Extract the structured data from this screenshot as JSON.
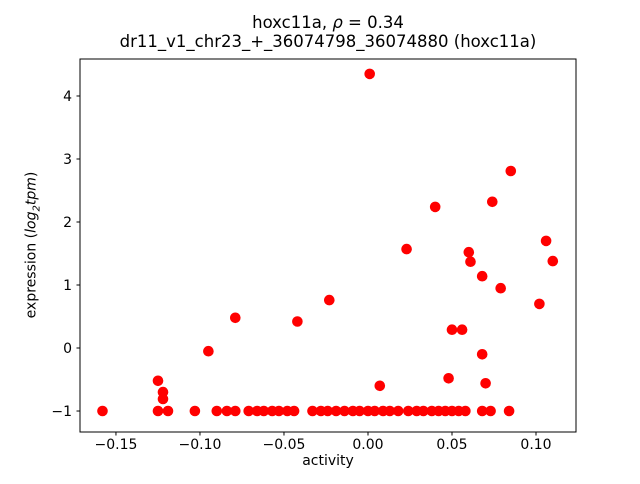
{
  "figure": {
    "title_parts": {
      "name": "hoxc11a, ",
      "rho": "ρ",
      "eq": " = 0.34"
    },
    "subtitle": "dr11_v1_chr23_+_36074798_36074880 (hoxc11a)",
    "ylabel_parts": {
      "prefix": "expression (",
      "log": "log",
      "sub": "2",
      "word": "tpm",
      "suffix": ")"
    }
  },
  "chart_data": {
    "type": "scatter",
    "title": "hoxc11a, ρ = 0.34",
    "subtitle": "dr11_v1_chr23_+_36074798_36074880 (hoxc11a)",
    "xlabel": "activity",
    "ylabel": "expression (log2tpm)",
    "legend": "none",
    "grid": false,
    "marker_color": "#ff0000",
    "marker_radius_px": 5.3,
    "xlim": [
      -0.1714,
      0.1238
    ],
    "ylim": [
      -1.333,
      4.587
    ],
    "x_ticks": [
      {
        "v": -0.15,
        "label": "−0.15"
      },
      {
        "v": -0.1,
        "label": "−0.10"
      },
      {
        "v": -0.05,
        "label": "−0.05"
      },
      {
        "v": 0.0,
        "label": "0.00"
      },
      {
        "v": 0.05,
        "label": "0.05"
      },
      {
        "v": 0.1,
        "label": "0.10"
      }
    ],
    "y_ticks": [
      {
        "v": -1,
        "label": "−1"
      },
      {
        "v": 0,
        "label": "0"
      },
      {
        "v": 1,
        "label": "1"
      },
      {
        "v": 2,
        "label": "2"
      },
      {
        "v": 3,
        "label": "3"
      },
      {
        "v": 4,
        "label": "4"
      }
    ],
    "points": [
      [
        0.001,
        4.35
      ],
      [
        0.085,
        2.81
      ],
      [
        0.074,
        2.32
      ],
      [
        0.04,
        2.24
      ],
      [
        0.106,
        1.7
      ],
      [
        0.023,
        1.57
      ],
      [
        0.06,
        1.52
      ],
      [
        0.11,
        1.38
      ],
      [
        0.061,
        1.37
      ],
      [
        0.068,
        1.14
      ],
      [
        0.079,
        0.95
      ],
      [
        -0.023,
        0.76
      ],
      [
        0.102,
        0.7
      ],
      [
        -0.079,
        0.48
      ],
      [
        -0.042,
        0.42
      ],
      [
        0.05,
        0.29
      ],
      [
        0.056,
        0.29
      ],
      [
        -0.095,
        -0.05
      ],
      [
        0.068,
        -0.1
      ],
      [
        0.048,
        -0.48
      ],
      [
        -0.125,
        -0.52
      ],
      [
        0.07,
        -0.56
      ],
      [
        0.007,
        -0.6
      ],
      [
        -0.122,
        -0.7
      ],
      [
        -0.122,
        -0.81
      ],
      [
        -0.158,
        -1.0
      ],
      [
        -0.125,
        -1.0
      ],
      [
        -0.119,
        -1.0
      ],
      [
        -0.103,
        -1.0
      ],
      [
        -0.09,
        -1.0
      ],
      [
        -0.084,
        -1.0
      ],
      [
        -0.079,
        -1.0
      ],
      [
        -0.071,
        -1.0
      ],
      [
        -0.066,
        -1.0
      ],
      [
        -0.062,
        -1.0
      ],
      [
        -0.057,
        -1.0
      ],
      [
        -0.053,
        -1.0
      ],
      [
        -0.048,
        -1.0
      ],
      [
        -0.044,
        -1.0
      ],
      [
        -0.033,
        -1.0
      ],
      [
        -0.028,
        -1.0
      ],
      [
        -0.024,
        -1.0
      ],
      [
        -0.019,
        -1.0
      ],
      [
        -0.014,
        -1.0
      ],
      [
        -0.009,
        -1.0
      ],
      [
        -0.005,
        -1.0
      ],
      [
        0.0,
        -1.0
      ],
      [
        0.004,
        -1.0
      ],
      [
        0.009,
        -1.0
      ],
      [
        0.013,
        -1.0
      ],
      [
        0.018,
        -1.0
      ],
      [
        0.024,
        -1.0
      ],
      [
        0.029,
        -1.0
      ],
      [
        0.033,
        -1.0
      ],
      [
        0.038,
        -1.0
      ],
      [
        0.042,
        -1.0
      ],
      [
        0.046,
        -1.0
      ],
      [
        0.05,
        -1.0
      ],
      [
        0.054,
        -1.0
      ],
      [
        0.058,
        -1.0
      ],
      [
        0.068,
        -1.0
      ],
      [
        0.073,
        -1.0
      ],
      [
        0.084,
        -1.0
      ]
    ]
  }
}
